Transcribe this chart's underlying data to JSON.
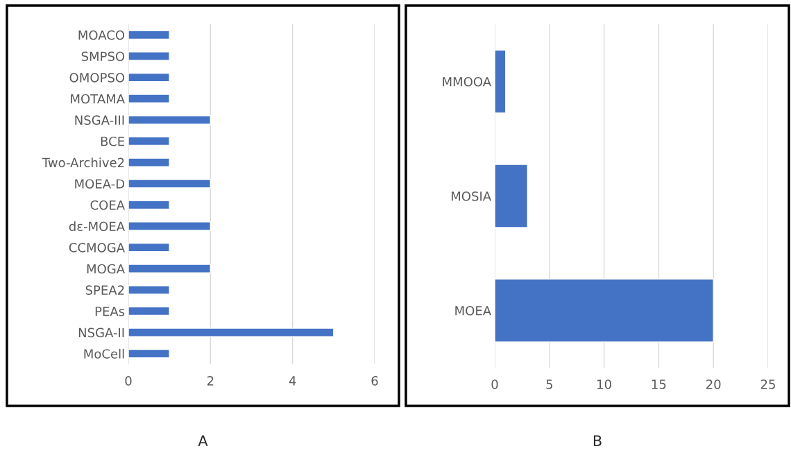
{
  "chart_data": [
    {
      "type": "bar",
      "orientation": "horizontal",
      "xlabel": "A",
      "categories": [
        "MOACO",
        "SMPSO",
        "OMOPSO",
        "MOTAMA",
        "NSGA-III",
        "BCE",
        "Two-Archive2",
        "MOEA-D",
        "COEA",
        "dε-MOEA",
        "CCMOGA",
        "MOGA",
        "SPEA2",
        "PEAs",
        "NSGA-II",
        "MoCell"
      ],
      "values": [
        1,
        1,
        1,
        1,
        2,
        1,
        1,
        2,
        1,
        2,
        1,
        2,
        1,
        1,
        5,
        1
      ],
      "color": "#4472c4",
      "xlim": [
        0,
        6
      ],
      "xticks": [
        0,
        2,
        4,
        6
      ],
      "grid": "x"
    },
    {
      "type": "bar",
      "orientation": "horizontal",
      "xlabel": "B",
      "categories": [
        "MMOOA",
        "MOSIA",
        "MOEA"
      ],
      "values": [
        1,
        3,
        20
      ],
      "color": "#4472c4",
      "xlim": [
        0,
        25
      ],
      "xticks": [
        0,
        5,
        10,
        15,
        20,
        25
      ],
      "grid": "x"
    }
  ]
}
